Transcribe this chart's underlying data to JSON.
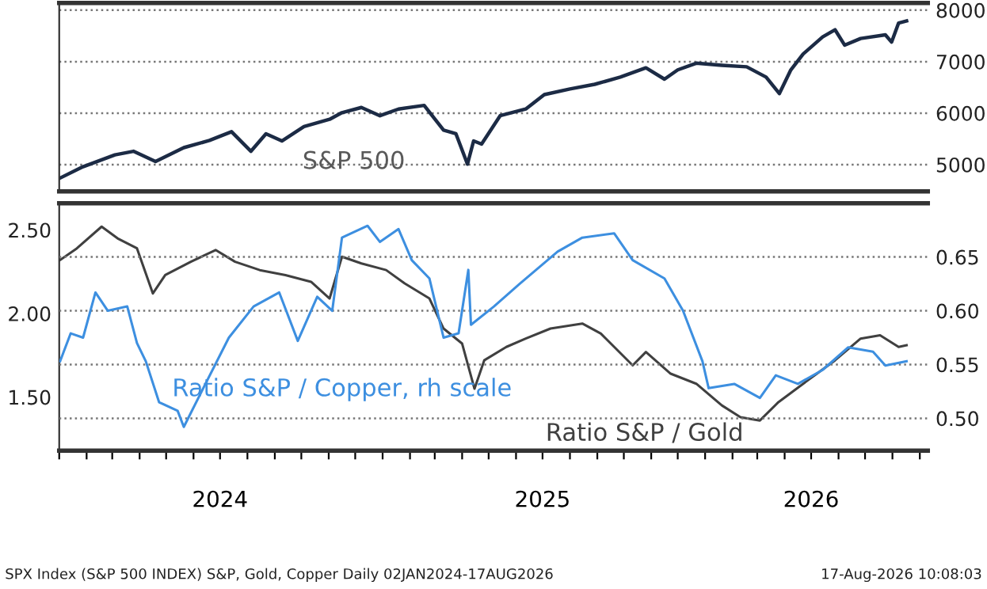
{
  "chart_data": [
    {
      "type": "line",
      "xlim": [
        "2024-01-01",
        "2026-09-10"
      ],
      "ylim": [
        4480,
        8140
      ],
      "yticks": [
        5000,
        6000,
        7000,
        8000
      ],
      "tick_labels": "y",
      "grid": "y",
      "line_style": "solid",
      "series": [
        {
          "name": "S&P 500",
          "color": "#1c2b45",
          "x": [
            "2024-01-02",
            "2024-01-28",
            "2024-03-04",
            "2024-03-25",
            "2024-04-19",
            "2024-05-21",
            "2024-06-19",
            "2024-07-14",
            "2024-08-05",
            "2024-08-22",
            "2024-09-09",
            "2024-10-04",
            "2024-11-02",
            "2024-11-16",
            "2024-12-08",
            "2024-12-29",
            "2025-01-19",
            "2025-02-17",
            "2025-03-11",
            "2025-03-25",
            "2025-04-07",
            "2025-04-14",
            "2025-04-23",
            "2025-05-14",
            "2025-06-12",
            "2025-07-03",
            "2025-08-01",
            "2025-08-29",
            "2025-09-27",
            "2025-10-26",
            "2025-11-16",
            "2025-12-01",
            "2025-12-22",
            "2026-01-20",
            "2026-02-17",
            "2026-03-11",
            "2026-03-26",
            "2026-04-08",
            "2026-04-22",
            "2026-05-14",
            "2026-05-28",
            "2026-06-08",
            "2026-06-26",
            "2026-07-24",
            "2026-07-31",
            "2026-08-08",
            "2026-08-17"
          ],
          "values": [
            4740,
            4960,
            5190,
            5260,
            5060,
            5330,
            5470,
            5640,
            5260,
            5600,
            5460,
            5740,
            5880,
            6010,
            6110,
            5950,
            6080,
            6150,
            5670,
            5600,
            5010,
            5460,
            5400,
            5950,
            6080,
            6360,
            6470,
            6560,
            6700,
            6880,
            6660,
            6840,
            6970,
            6930,
            6900,
            6700,
            6380,
            6840,
            7150,
            7480,
            7620,
            7320,
            7450,
            7520,
            7380,
            7750,
            7790
          ]
        }
      ]
    },
    {
      "type": "line",
      "xlim": [
        "2024-01-01",
        "2026-09-10"
      ],
      "ylim": [
        1.18,
        2.66
      ],
      "yticks": [
        {
          "value": 1.5,
          "label": "1.50"
        },
        {
          "value": 2.0,
          "label": "2.00"
        },
        {
          "value": 2.5,
          "label": "2.50"
        }
      ],
      "y2lim": [
        0.47,
        0.7
      ],
      "y2ticks": [
        {
          "value": 0.5,
          "label": "0.50"
        },
        {
          "value": 0.55,
          "label": "0.55"
        },
        {
          "value": 0.6,
          "label": "0.60"
        },
        {
          "value": 0.65,
          "label": "0.65"
        }
      ],
      "grid": "y2",
      "line_style": "solid",
      "xticks": [
        {
          "value": "2024-01-01",
          "label": null
        },
        {
          "value": "2024-02-01",
          "label": null
        },
        {
          "value": "2024-03-01",
          "label": null
        },
        {
          "value": "2024-04-01",
          "label": null
        },
        {
          "value": "2024-05-01",
          "label": null
        },
        {
          "value": "2024-06-01",
          "label": null
        },
        {
          "value": "2024-07-01",
          "label": "2024"
        },
        {
          "value": "2024-08-01",
          "label": null
        },
        {
          "value": "2024-09-01",
          "label": null
        },
        {
          "value": "2024-10-01",
          "label": null
        },
        {
          "value": "2024-11-01",
          "label": null
        },
        {
          "value": "2024-12-01",
          "label": null
        },
        {
          "value": "2025-01-01",
          "label": null
        },
        {
          "value": "2025-02-01",
          "label": null
        },
        {
          "value": "2025-03-01",
          "label": null
        },
        {
          "value": "2025-04-01",
          "label": null
        },
        {
          "value": "2025-05-01",
          "label": null
        },
        {
          "value": "2025-06-01",
          "label": null
        },
        {
          "value": "2025-07-01",
          "label": "2025"
        },
        {
          "value": "2025-08-01",
          "label": null
        },
        {
          "value": "2025-09-01",
          "label": null
        },
        {
          "value": "2025-10-01",
          "label": null
        },
        {
          "value": "2025-11-01",
          "label": null
        },
        {
          "value": "2025-12-01",
          "label": null
        },
        {
          "value": "2026-01-01",
          "label": null
        },
        {
          "value": "2026-02-01",
          "label": null
        },
        {
          "value": "2026-03-01",
          "label": null
        },
        {
          "value": "2026-04-01",
          "label": null
        },
        {
          "value": "2026-05-01",
          "label": "2026"
        },
        {
          "value": "2026-06-01",
          "label": null
        },
        {
          "value": "2026-07-01",
          "label": null
        },
        {
          "value": "2026-08-01",
          "label": null
        },
        {
          "value": "2026-09-01",
          "label": null
        }
      ],
      "annotations": [
        "SPX Index (S&P 500 INDEX) S&P, Gold, Copper Daily 02JAN2024-17AUG2026",
        "17-Aug-2026 10:08:03"
      ],
      "series": [
        {
          "name": "Ratio S&P / Copper, rh scale",
          "color": "#3d8fe0",
          "axis": "y2",
          "x": [
            "2024-01-02",
            "2024-01-14",
            "2024-01-28",
            "2024-02-11",
            "2024-02-25",
            "2024-03-18",
            "2024-03-29",
            "2024-04-08",
            "2024-04-23",
            "2024-05-14",
            "2024-05-21",
            "2024-06-12",
            "2024-07-11",
            "2024-08-08",
            "2024-09-06",
            "2024-09-27",
            "2024-10-19",
            "2024-11-05",
            "2024-11-16",
            "2024-12-15",
            "2024-12-29",
            "2025-01-19",
            "2025-02-03",
            "2025-02-23",
            "2025-03-11",
            "2025-03-28",
            "2025-04-08",
            "2025-04-11",
            "2025-05-07",
            "2025-06-05",
            "2025-07-18",
            "2025-08-15",
            "2025-09-20",
            "2025-10-11",
            "2025-11-16",
            "2025-12-07",
            "2025-12-29",
            "2026-01-05",
            "2026-02-03",
            "2026-03-04",
            "2026-03-22",
            "2026-04-16",
            "2026-05-14",
            "2026-06-12",
            "2026-07-10",
            "2026-07-24",
            "2026-08-17"
          ],
          "values": [
            0.553,
            0.579,
            0.575,
            0.617,
            0.6,
            0.604,
            0.57,
            0.553,
            0.515,
            0.507,
            0.492,
            0.528,
            0.575,
            0.604,
            0.617,
            0.572,
            0.613,
            0.6,
            0.668,
            0.679,
            0.664,
            0.676,
            0.647,
            0.63,
            0.575,
            0.579,
            0.638,
            0.587,
            0.604,
            0.625,
            0.655,
            0.668,
            0.672,
            0.647,
            0.63,
            0.6,
            0.553,
            0.528,
            0.532,
            0.519,
            0.54,
            0.532,
            0.545,
            0.566,
            0.562,
            0.549,
            0.553
          ]
        },
        {
          "name": "Ratio S&P / Gold",
          "color": "#404040",
          "axis": "y",
          "x": [
            "2024-01-02",
            "2024-01-21",
            "2024-02-18",
            "2024-03-07",
            "2024-03-29",
            "2024-04-16",
            "2024-04-30",
            "2024-05-29",
            "2024-06-26",
            "2024-07-18",
            "2024-08-15",
            "2024-09-13",
            "2024-10-12",
            "2024-11-02",
            "2024-11-16",
            "2024-12-08",
            "2025-01-05",
            "2025-01-26",
            "2025-02-23",
            "2025-03-11",
            "2025-04-01",
            "2025-04-15",
            "2025-04-26",
            "2025-05-21",
            "2025-06-12",
            "2025-07-10",
            "2025-08-15",
            "2025-09-05",
            "2025-10-11",
            "2025-10-26",
            "2025-11-23",
            "2025-12-22",
            "2026-01-20",
            "2026-02-10",
            "2026-03-04",
            "2026-03-25",
            "2026-04-22",
            "2026-05-28",
            "2026-06-26",
            "2026-07-18",
            "2026-08-08",
            "2026-08-17"
          ],
          "values": [
            2.32,
            2.39,
            2.52,
            2.45,
            2.39,
            2.12,
            2.23,
            2.31,
            2.38,
            2.31,
            2.26,
            2.23,
            2.19,
            2.09,
            2.34,
            2.3,
            2.26,
            2.18,
            2.09,
            1.91,
            1.82,
            1.55,
            1.72,
            1.8,
            1.85,
            1.91,
            1.94,
            1.88,
            1.69,
            1.77,
            1.64,
            1.58,
            1.45,
            1.38,
            1.36,
            1.47,
            1.58,
            1.72,
            1.85,
            1.87,
            1.8,
            1.81
          ]
        }
      ]
    }
  ]
}
